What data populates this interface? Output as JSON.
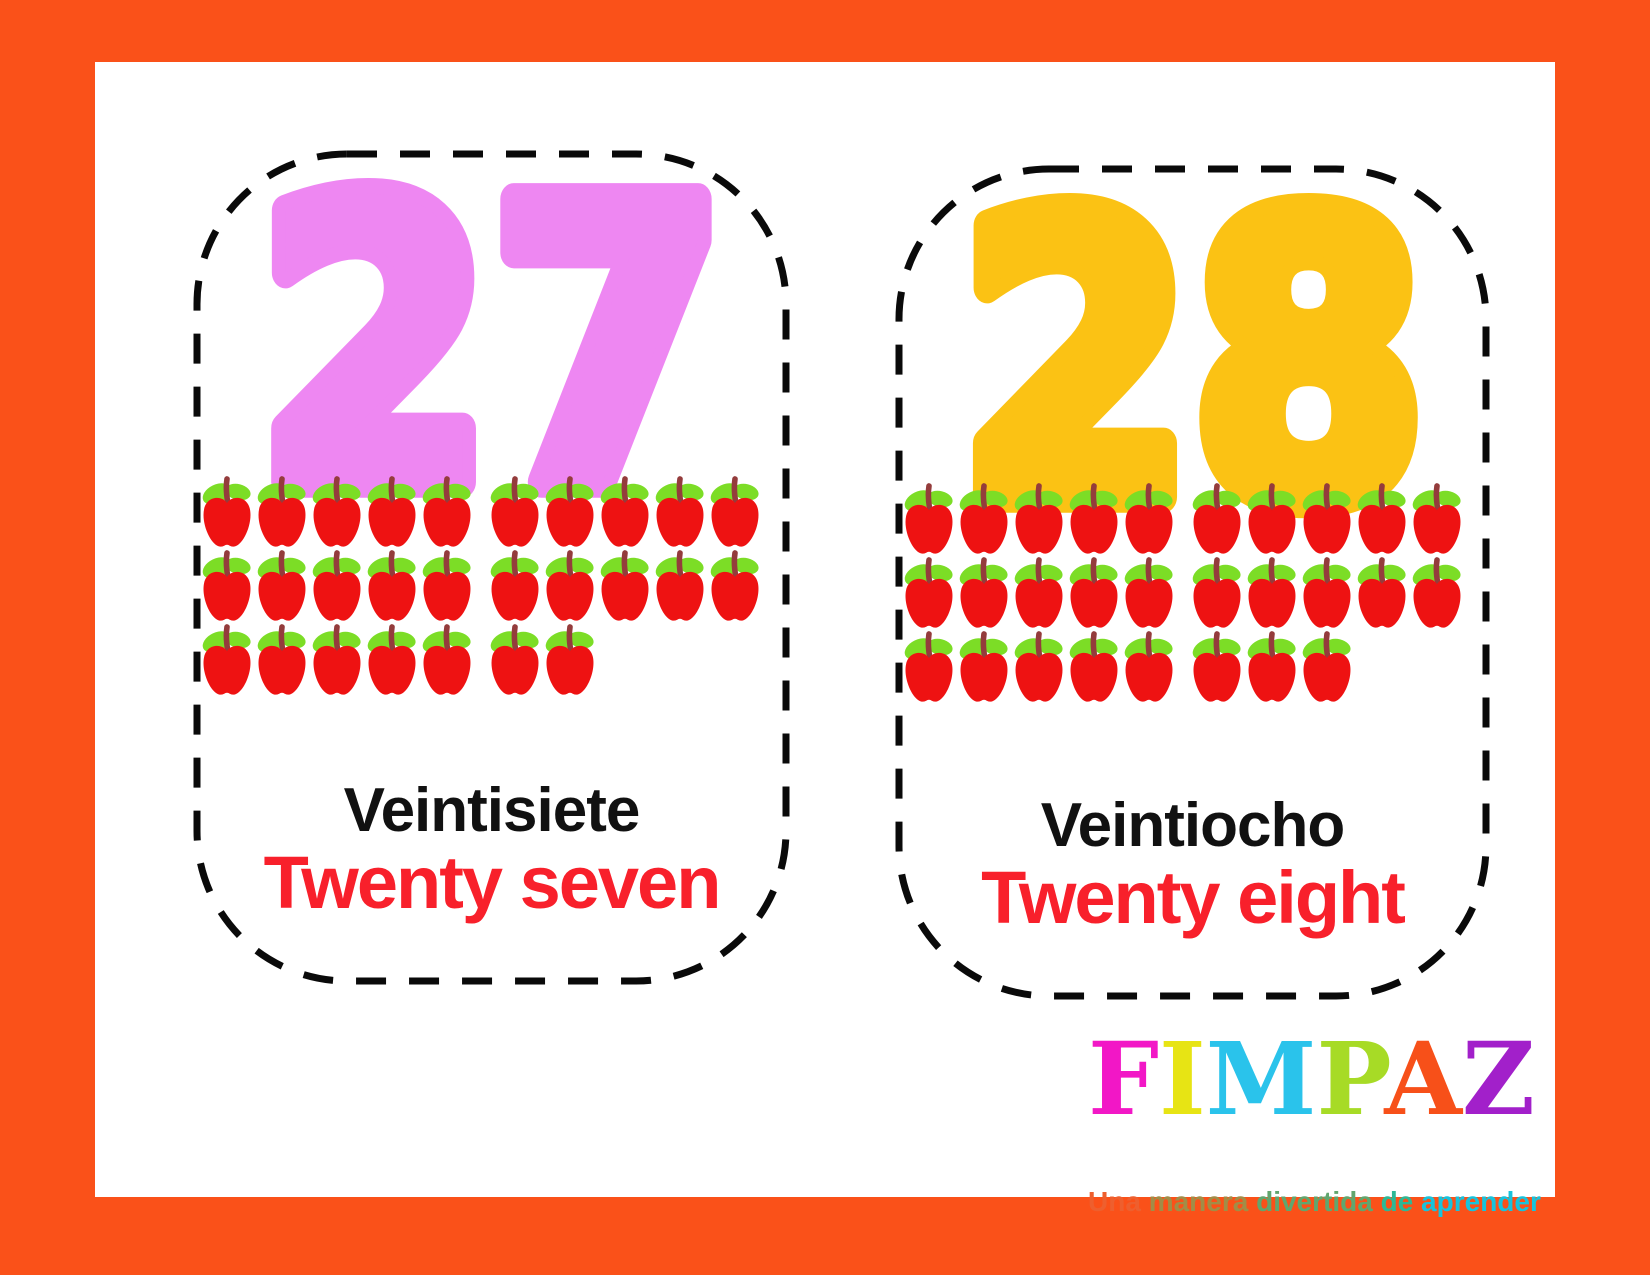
{
  "page": {
    "frame_color": "#FA5119",
    "sheet_color": "#FFFFFF",
    "dash_color": "#0A0A0A"
  },
  "apple_icon": {
    "body_color": "#EE1212",
    "leaf_color": "#7CDD26",
    "stem_color": "#943C3C"
  },
  "cards": [
    {
      "number": "27",
      "number_color": "#EE87F2",
      "apple_rows": [
        10,
        10,
        7
      ],
      "apple_total": 27,
      "label_spanish": "Veintisiete",
      "label_english": "Twenty seven",
      "label_spanish_color": "#111111",
      "label_english_color": "#F8202B"
    },
    {
      "number": "28",
      "number_color": "#FBC214",
      "apple_rows": [
        10,
        10,
        8
      ],
      "apple_total": 28,
      "label_spanish": "Veintiocho",
      "label_english": "Twenty eight",
      "label_spanish_color": "#111111",
      "label_english_color": "#F8202B"
    }
  ],
  "logo": {
    "name": "FIMPAZ",
    "letters": [
      {
        "char": "F",
        "color": "#F217C6"
      },
      {
        "char": "I",
        "color": "#E7E414"
      },
      {
        "char": "M",
        "color": "#2AC3EB"
      },
      {
        "char": "P",
        "color": "#A7DB26"
      },
      {
        "char": "A",
        "color": "#F75019"
      },
      {
        "char": "Z",
        "color": "#A220CA"
      }
    ],
    "tagline": "Una manera divertida de aprender",
    "tagline_words": [
      {
        "text": "Una",
        "color": "#EE5F2E"
      },
      {
        "text": "manera",
        "color": "#A18D47"
      },
      {
        "text": "divertida",
        "color": "#61A66E"
      },
      {
        "text": "de",
        "color": "#2DB896"
      },
      {
        "text": "aprender",
        "color": "#17C3DC"
      }
    ]
  }
}
